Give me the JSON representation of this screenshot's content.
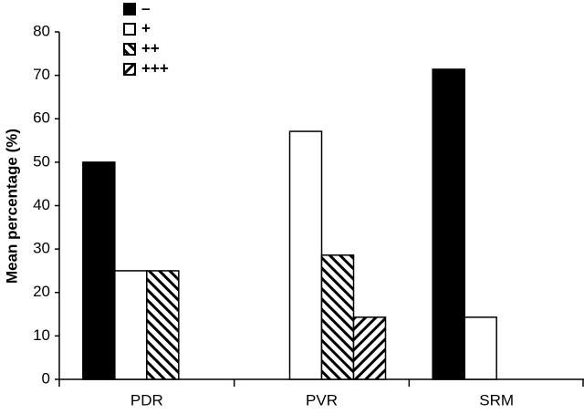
{
  "chart_data": {
    "type": "bar",
    "y_label": "Mean percentage (%)",
    "categories": [
      "PDR",
      "PVR",
      "SRM"
    ],
    "series": [
      {
        "name": "–",
        "color": "#000000",
        "values": [
          50,
          0,
          71.4
        ]
      },
      {
        "name": "+",
        "color": "#ffffff",
        "values": [
          25,
          57.1,
          14.3
        ]
      },
      {
        "name": "++",
        "color": "#000000",
        "pattern": "back-diagonal",
        "values": [
          25,
          28.6,
          0
        ]
      },
      {
        "name": "+++",
        "color": "#000000",
        "pattern": "diagonal",
        "values": [
          0,
          14.3,
          0
        ]
      }
    ],
    "ylim": [
      0,
      80
    ],
    "yticks": [
      0,
      10,
      20,
      30,
      40,
      50,
      60,
      70,
      80
    ],
    "grid": false,
    "legend": "top-left"
  }
}
